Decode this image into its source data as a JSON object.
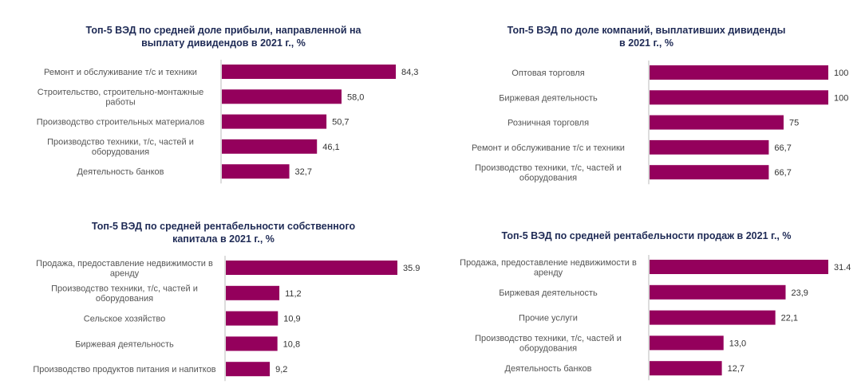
{
  "colors": {
    "bar": "#94005c",
    "title": "#1e2a55",
    "label": "#555555",
    "value": "#333333",
    "axis": "#bbbbbb"
  },
  "chart_data": [
    {
      "type": "bar",
      "orientation": "horizontal",
      "title": "Топ-5 ВЭД по средней доле прибыли, направленной на\nвыплату дивидендов в 2021 г., %",
      "categories": [
        "Ремонт и обслуживание т/с и техники",
        "Строительство, строительно-монтажные\nработы",
        "Производство строительных материалов",
        "Производство техники, т/с, частей и\nоборудования",
        "Деятельность банков"
      ],
      "values": [
        84.3,
        58.0,
        50.7,
        46.1,
        32.7
      ],
      "value_labels": [
        "84,3",
        "58,0",
        "50,7",
        "46,1",
        "32,7"
      ],
      "xlim": [
        0,
        84.3
      ],
      "grid": false,
      "legend": "none"
    },
    {
      "type": "bar",
      "orientation": "horizontal",
      "title": "Топ-5 ВЭД по доле компаний, выплативших дивиденды\nв 2021 г., %",
      "categories": [
        "Оптовая торговля",
        "Биржевая деятельность",
        "Розничная торговля",
        "Ремонт и обслуживание т/с и техники",
        "Производство техники, т/с, частей и\nоборудования"
      ],
      "values": [
        100,
        100,
        75,
        66.7,
        66.7
      ],
      "value_labels": [
        "100",
        "100",
        "75",
        "66,7",
        "66,7"
      ],
      "xlim": [
        0,
        100
      ],
      "grid": false,
      "legend": "none"
    },
    {
      "type": "bar",
      "orientation": "horizontal",
      "title": "Топ-5 ВЭД по средней рентабельности собственного\nкапитала в 2021 г., %",
      "categories": [
        "Продажа, предоставление недвижимости в\nаренду",
        "Производство техники, т/с, частей и\nоборудования",
        "Сельское хозяйство",
        "Биржевая деятельность",
        "Производство продуктов питания и напитков"
      ],
      "values": [
        35.9,
        11.2,
        10.9,
        10.8,
        9.2
      ],
      "value_labels": [
        "35.9",
        "11,2",
        "10,9",
        "10,8",
        "9,2"
      ],
      "xlim": [
        0,
        35.9
      ],
      "grid": false,
      "legend": "none"
    },
    {
      "type": "bar",
      "orientation": "horizontal",
      "title": "Топ-5 ВЭД по средней рентабельности продаж в 2021 г., %",
      "categories": [
        "Продажа, предоставление недвижимости в\nаренду",
        "Биржевая деятельность",
        "Прочие услуги",
        "Производство техники, т/с, частей и\nоборудования",
        "Деятельность банков"
      ],
      "values": [
        31.4,
        23.9,
        22.1,
        13.0,
        12.7
      ],
      "value_labels": [
        "31.4",
        "23,9",
        "22,1",
        "13,0",
        "12,7"
      ],
      "xlim": [
        0,
        31.4
      ],
      "grid": false,
      "legend": "none"
    }
  ]
}
